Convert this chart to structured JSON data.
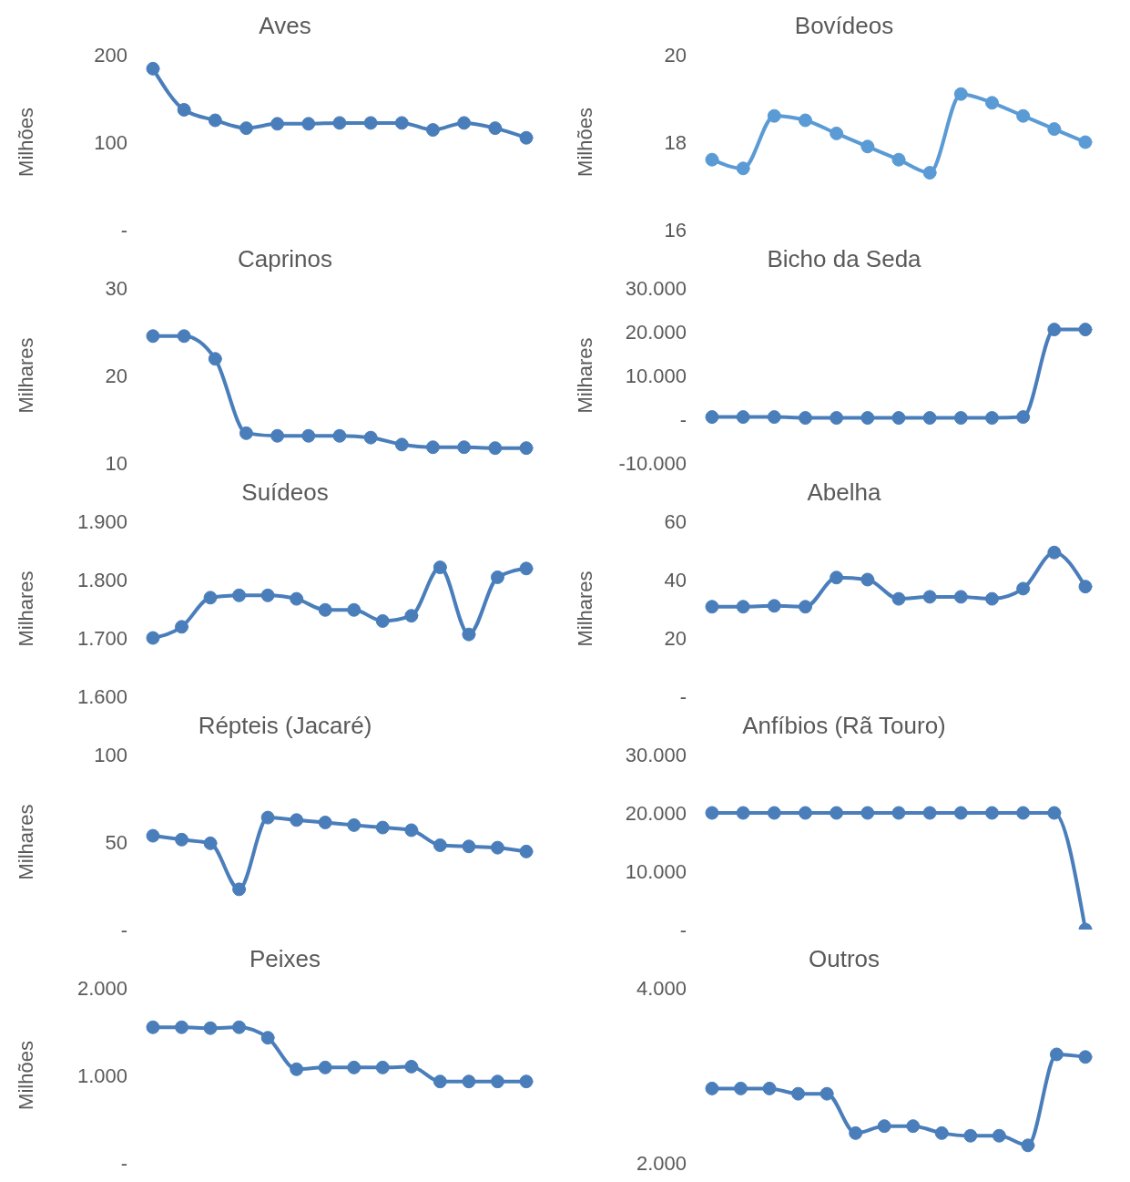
{
  "chart_data": [
    {
      "type": "line",
      "title": "Aves",
      "ylabel": "Milhões",
      "categories": [
        null,
        null,
        null,
        null,
        null,
        null,
        null,
        null,
        null,
        null,
        null,
        null,
        null
      ],
      "series": [
        {
          "color": "#4a7ebb",
          "values": [
            184,
            137,
            125,
            116,
            121,
            121,
            122,
            122,
            122,
            114,
            122,
            116,
            105
          ]
        }
      ],
      "ylim": [
        0,
        200
      ],
      "yticks": [
        {
          "value": 0,
          "label": "-"
        },
        100,
        200
      ],
      "tick_labels": "y",
      "marker": "circle",
      "line_style": "solid",
      "grid": false,
      "legend": false
    },
    {
      "type": "line",
      "title": "Bovídeos",
      "ylabel": "Milhões",
      "categories": [
        null,
        null,
        null,
        null,
        null,
        null,
        null,
        null,
        null,
        null,
        null,
        null,
        null
      ],
      "series": [
        {
          "color": "#5b9bd5",
          "values": [
            17.6,
            17.4,
            18.6,
            18.5,
            18.2,
            17.9,
            17.6,
            17.3,
            19.1,
            18.9,
            18.6,
            18.3,
            18.0
          ]
        }
      ],
      "ylim": [
        16,
        20
      ],
      "yticks": [
        16,
        18,
        20
      ],
      "tick_labels": "y",
      "marker": "circle",
      "line_style": "solid",
      "grid": false,
      "legend": false
    },
    {
      "type": "line",
      "title": "Caprinos",
      "ylabel": "Milhares",
      "categories": [
        null,
        null,
        null,
        null,
        null,
        null,
        null,
        null,
        null,
        null,
        null,
        null,
        null
      ],
      "series": [
        {
          "color": "#4a7ebb",
          "values": [
            24.5,
            24.5,
            21.9,
            13.4,
            13.1,
            13.1,
            13.1,
            12.9,
            12.1,
            11.8,
            11.8,
            11.7,
            11.7
          ]
        }
      ],
      "ylim": [
        10,
        30
      ],
      "yticks": [
        10,
        20,
        30
      ],
      "tick_labels": "y",
      "marker": "circle",
      "line_style": "solid",
      "grid": false,
      "legend": false
    },
    {
      "type": "line",
      "title": "Bicho da Seda",
      "ylabel": "Milhares",
      "categories": [
        null,
        null,
        null,
        null,
        null,
        null,
        null,
        null,
        null,
        null,
        null,
        null,
        null
      ],
      "series": [
        {
          "color": "#4a7ebb",
          "values": [
            500,
            500,
            500,
            300,
            300,
            300,
            300,
            300,
            300,
            300,
            500,
            20500,
            20500
          ]
        }
      ],
      "ylim": [
        -10000,
        30000
      ],
      "yticks": [
        {
          "value": -10000,
          "label": "-10.000"
        },
        {
          "value": 0,
          "label": "-"
        },
        {
          "value": 10000,
          "label": "10.000"
        },
        {
          "value": 20000,
          "label": "20.000"
        },
        {
          "value": 30000,
          "label": "30.000"
        }
      ],
      "tick_labels": "y",
      "marker": "circle",
      "line_style": "solid",
      "grid": false,
      "legend": false
    },
    {
      "type": "line",
      "title": "Suídeos",
      "ylabel": "Milhares",
      "categories": [
        null,
        null,
        null,
        null,
        null,
        null,
        null,
        null,
        null,
        null,
        null,
        null,
        null,
        null
      ],
      "series": [
        {
          "color": "#4a7ebb",
          "values": [
            1700,
            1719,
            1769,
            1773,
            1773,
            1767,
            1748,
            1748,
            1729,
            1738,
            1821,
            1706,
            1804,
            1819
          ]
        }
      ],
      "ylim": [
        1600,
        1900
      ],
      "yticks": [
        {
          "value": 1600,
          "label": "1.600"
        },
        {
          "value": 1700,
          "label": "1.700"
        },
        {
          "value": 1800,
          "label": "1.800"
        },
        {
          "value": 1900,
          "label": "1.900"
        }
      ],
      "tick_labels": "y",
      "marker": "circle",
      "line_style": "solid",
      "grid": false,
      "legend": false
    },
    {
      "type": "line",
      "title": "Abelha",
      "ylabel": "Milhares",
      "categories": [
        null,
        null,
        null,
        null,
        null,
        null,
        null,
        null,
        null,
        null,
        null,
        null,
        null
      ],
      "series": [
        {
          "color": "#4a7ebb",
          "values": [
            30.7,
            30.7,
            31.0,
            30.7,
            40.7,
            40.0,
            33.4,
            34.1,
            34.1,
            33.4,
            36.9,
            49.3,
            37.6
          ]
        }
      ],
      "ylim": [
        0,
        60
      ],
      "yticks": [
        {
          "value": 0,
          "label": "-"
        },
        20,
        40,
        60
      ],
      "tick_labels": "y",
      "marker": "circle",
      "line_style": "solid",
      "grid": false,
      "legend": false
    },
    {
      "type": "line",
      "title": "Répteis (Jacaré)",
      "ylabel": "Milhares",
      "categories": [
        null,
        null,
        null,
        null,
        null,
        null,
        null,
        null,
        null,
        null,
        null,
        null,
        null,
        null
      ],
      "series": [
        {
          "color": "#4a7ebb",
          "values": [
            53.6,
            51.4,
            49.3,
            23,
            64,
            62.6,
            61.2,
            59.7,
            58.3,
            56.8,
            48.2,
            47.5,
            46.8,
            44.6
          ]
        }
      ],
      "ylim": [
        0,
        100
      ],
      "yticks": [
        {
          "value": 0,
          "label": "-"
        },
        50,
        100
      ],
      "tick_labels": "y",
      "marker": "circle",
      "line_style": "solid",
      "grid": false,
      "legend": false
    },
    {
      "type": "line",
      "title": "Anfíbios (Rã Touro)",
      "categories": [
        null,
        null,
        null,
        null,
        null,
        null,
        null,
        null,
        null,
        null,
        null,
        null,
        null
      ],
      "series": [
        {
          "color": "#4a7ebb",
          "values": [
            20000,
            20000,
            20000,
            20000,
            20000,
            20000,
            20000,
            20000,
            20000,
            20000,
            20000,
            20000,
            0
          ]
        }
      ],
      "ylim": [
        0,
        30000
      ],
      "yticks": [
        {
          "value": 0,
          "label": "-"
        },
        {
          "value": 10000,
          "label": "10.000"
        },
        {
          "value": 20000,
          "label": "20.000"
        },
        {
          "value": 30000,
          "label": "30.000"
        }
      ],
      "tick_labels": "y",
      "marker": "circle",
      "line_style": "solid",
      "grid": false,
      "legend": false
    },
    {
      "type": "line",
      "title": "Peixes",
      "ylabel": "Milhões",
      "categories": [
        null,
        null,
        null,
        null,
        null,
        null,
        null,
        null,
        null,
        null,
        null,
        null,
        null,
        null
      ],
      "series": [
        {
          "color": "#4a7ebb",
          "values": [
            1550,
            1550,
            1540,
            1550,
            1430,
            1070,
            1090,
            1090,
            1090,
            1100,
            930,
            930,
            930,
            930
          ]
        }
      ],
      "ylim": [
        0,
        2000
      ],
      "yticks": [
        {
          "value": 0,
          "label": "-"
        },
        {
          "value": 1000,
          "label": "1.000"
        },
        {
          "value": 2000,
          "label": "2.000"
        }
      ],
      "tick_labels": "y",
      "marker": "circle",
      "line_style": "solid",
      "grid": false,
      "legend": false
    },
    {
      "type": "line",
      "title": "Outros",
      "categories": [
        null,
        null,
        null,
        null,
        null,
        null,
        null,
        null,
        null,
        null,
        null,
        null,
        null,
        null
      ],
      "series": [
        {
          "color": "#4a7ebb",
          "values": [
            2850,
            2850,
            2850,
            2790,
            2790,
            2340,
            2420,
            2420,
            2340,
            2310,
            2310,
            2200,
            3240,
            3210
          ]
        }
      ],
      "ylim": [
        2000,
        4000
      ],
      "yticks": [
        {
          "value": 2000,
          "label": "2.000"
        },
        {
          "value": 4000,
          "label": "4.000"
        }
      ],
      "tick_labels": "y",
      "marker": "circle",
      "line_style": "solid",
      "grid": false,
      "legend": false
    }
  ]
}
